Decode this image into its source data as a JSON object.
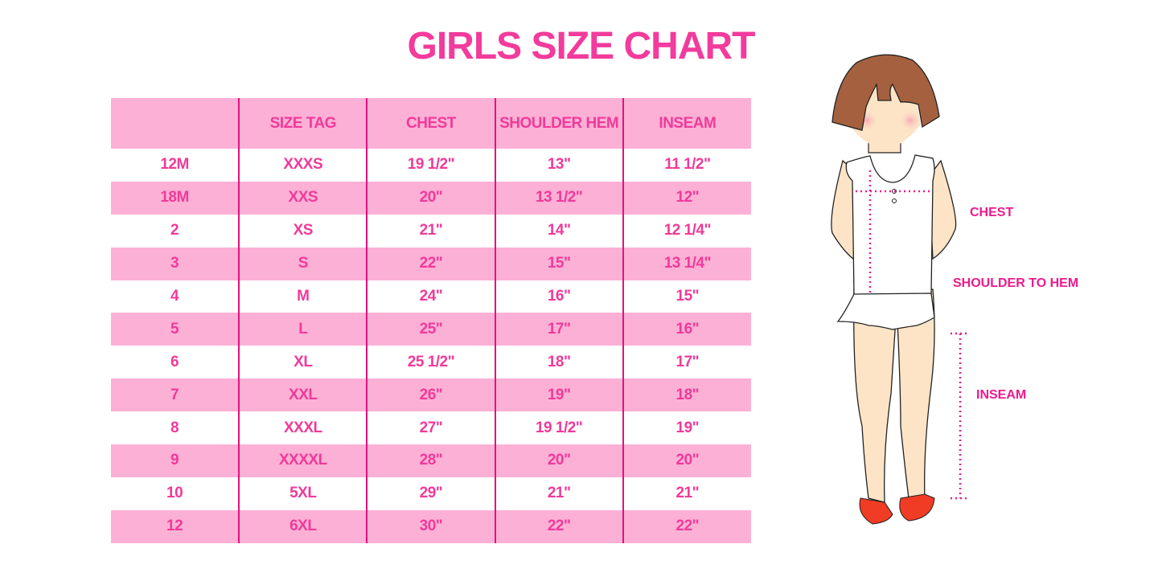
{
  "title": "GIRLS SIZE CHART",
  "table": {
    "headers": [
      "",
      "SIZE TAG",
      "CHEST",
      "SHOULDER HEM",
      "INSEAM"
    ],
    "rows": [
      [
        "12M",
        "XXXS",
        "19 1/2\"",
        "13\"",
        "11 1/2\""
      ],
      [
        "18M",
        "XXS",
        "20\"",
        "13 1/2\"",
        "12\""
      ],
      [
        "2",
        "XS",
        "21\"",
        "14\"",
        "12 1/4\""
      ],
      [
        "3",
        "S",
        "22\"",
        "15\"",
        "13 1/4\""
      ],
      [
        "4",
        "M",
        "24\"",
        "16\"",
        "15\""
      ],
      [
        "5",
        "L",
        "25\"",
        "17\"",
        "16\""
      ],
      [
        "6",
        "XL",
        "25 1/2\"",
        "18\"",
        "17\""
      ],
      [
        "7",
        "XXL",
        "26\"",
        "19\"",
        "18\""
      ],
      [
        "8",
        "XXXL",
        "27\"",
        "19 1/2\"",
        "19\""
      ],
      [
        "9",
        "XXXXL",
        "28\"",
        "20\"",
        "20\""
      ],
      [
        "10",
        "5XL",
        "29\"",
        "21\"",
        "21\""
      ],
      [
        "12",
        "6XL",
        "30\"",
        "22\"",
        "22\""
      ]
    ]
  },
  "figure": {
    "labels": {
      "chest": "CHEST",
      "shoulder_to_hem": "SHOULDER TO HEM",
      "inseam": "INSEAM"
    }
  },
  "colors": {
    "accent": "#f23b9c",
    "row_pink": "#fdb0d6",
    "divider": "#e3127f"
  }
}
